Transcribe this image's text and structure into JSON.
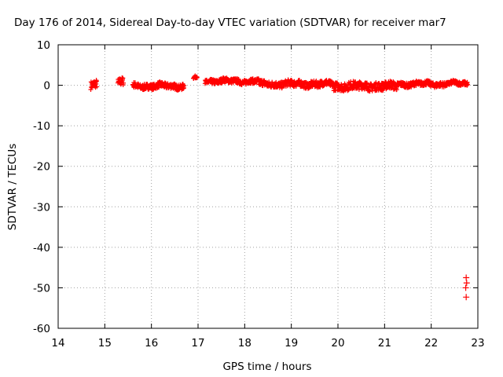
{
  "chart_data": {
    "type": "scatter",
    "title": "Day 176 of 2014, Sidereal Day-to-day VTEC variation (SDTVAR) for receiver mar7",
    "xlabel": "GPS time / hours",
    "ylabel": "SDTVAR / TECUs",
    "xlim": [
      14,
      23
    ],
    "ylim": [
      -60,
      10
    ],
    "xticks": [
      "14",
      "15",
      "16",
      "17",
      "18",
      "19",
      "20",
      "21",
      "22",
      "23"
    ],
    "yticks": [
      "10",
      "0",
      "-10",
      "-20",
      "-30",
      "-40",
      "-50",
      "-60"
    ],
    "grid": true,
    "grid_style": "dotted",
    "marker_color": "#ff0000",
    "marker": "plus",
    "segments": [
      {
        "x_start": 14.7,
        "x_end": 14.83,
        "y_center": 0.0,
        "y_spread": 1.0
      },
      {
        "x_start": 15.28,
        "x_end": 15.4,
        "y_center": 0.8,
        "y_spread": 1.0
      },
      {
        "x_start": 15.6,
        "x_end": 16.7,
        "y_center": -0.2,
        "y_spread": 0.7
      },
      {
        "x_start": 16.9,
        "x_end": 16.98,
        "y_center": 1.8,
        "y_spread": 0.3
      },
      {
        "x_start": 17.15,
        "x_end": 18.3,
        "y_center": 1.0,
        "y_spread": 0.6
      },
      {
        "x_start": 18.3,
        "x_end": 19.9,
        "y_center": 0.3,
        "y_spread": 0.8
      },
      {
        "x_start": 19.9,
        "x_end": 21.3,
        "y_center": -0.2,
        "y_spread": 1.0
      },
      {
        "x_start": 21.3,
        "x_end": 22.3,
        "y_center": 0.3,
        "y_spread": 0.6
      },
      {
        "x_start": 22.3,
        "x_end": 22.78,
        "y_center": 0.4,
        "y_spread": 0.5
      }
    ],
    "outliers": [
      {
        "x": 22.75,
        "y": -47.5
      },
      {
        "x": 22.76,
        "y": -48.8
      },
      {
        "x": 22.74,
        "y": -50.0
      },
      {
        "x": 22.75,
        "y": -52.3
      }
    ]
  }
}
